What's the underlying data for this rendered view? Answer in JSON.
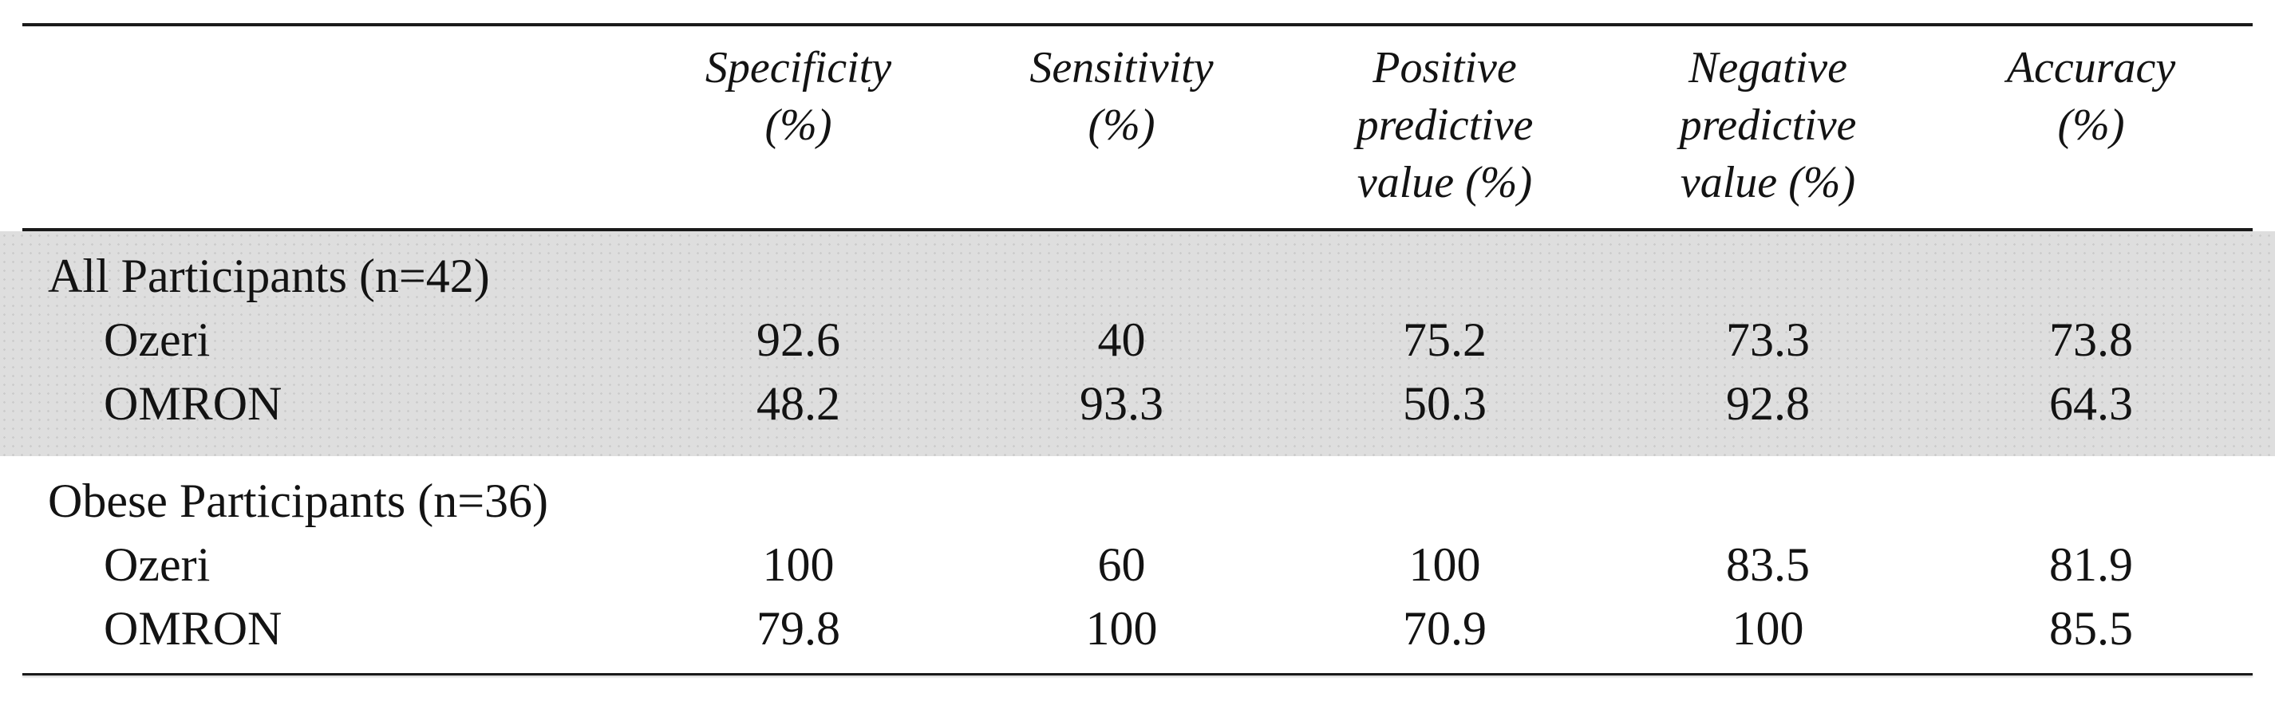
{
  "table": {
    "columns": [
      {
        "header": "Specificity\n(%)"
      },
      {
        "header": "Sensitivity\n(%)"
      },
      {
        "header": "Positive\npredictive\nvalue (%)"
      },
      {
        "header": "Negative\npredictive\nvalue (%)"
      },
      {
        "header": "Accuracy\n(%)"
      }
    ],
    "sections": [
      {
        "label": "All Participants (n=42)",
        "shaded": true,
        "rows": [
          {
            "label": "Ozeri",
            "values": [
              "92.6",
              "40",
              "75.2",
              "73.3",
              "73.8"
            ]
          },
          {
            "label": "OMRON",
            "values": [
              "48.2",
              "93.3",
              "50.3",
              "92.8",
              "64.3"
            ]
          }
        ]
      },
      {
        "label": "Obese Participants (n=36)",
        "shaded": false,
        "rows": [
          {
            "label": "Ozeri",
            "values": [
              "100",
              "60",
              "100",
              "83.5",
              "81.9"
            ]
          },
          {
            "label": "OMRON",
            "values": [
              "79.8",
              "100",
              "70.9",
              "100",
              "85.5"
            ]
          }
        ]
      }
    ]
  },
  "colors": {
    "shaded_band": "#dedede",
    "rule": "#1a1a1a",
    "background": "#ffffff",
    "text": "#131313"
  },
  "chart_data": {
    "type": "table",
    "title": "",
    "column_headers": [
      "",
      "Specificity (%)",
      "Sensitivity (%)",
      "Positive predictive value (%)",
      "Negative predictive value (%)",
      "Accuracy (%)"
    ],
    "rows": [
      [
        "All Participants (n=42)",
        "",
        "",
        "",
        "",
        ""
      ],
      [
        "Ozeri",
        92.6,
        40,
        75.2,
        73.3,
        73.8
      ],
      [
        "OMRON",
        48.2,
        93.3,
        50.3,
        92.8,
        64.3
      ],
      [
        "Obese Participants (n=36)",
        "",
        "",
        "",
        "",
        ""
      ],
      [
        "Ozeri",
        100,
        60,
        100,
        83.5,
        81.9
      ],
      [
        "OMRON",
        79.8,
        100,
        70.9,
        100,
        85.5
      ]
    ]
  }
}
